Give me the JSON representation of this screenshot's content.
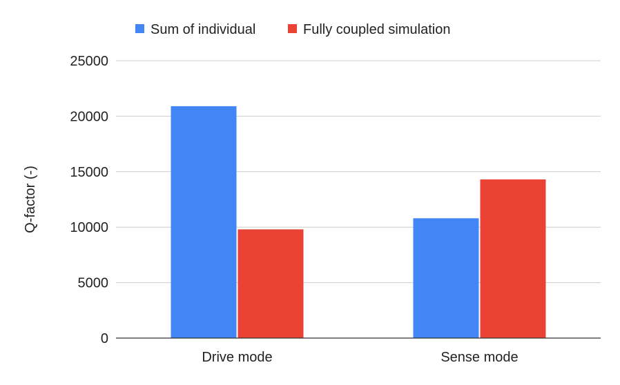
{
  "chart_data": {
    "type": "bar",
    "title": "",
    "xlabel": "",
    "ylabel": "Q-factor (-)",
    "categories": [
      "Drive mode",
      "Sense mode"
    ],
    "series": [
      {
        "name": "Sum of individual",
        "values": [
          20900,
          10800
        ],
        "color": "#4285f4"
      },
      {
        "name": "Fully coupled simulation",
        "values": [
          9800,
          14300
        ],
        "color": "#ea4335"
      }
    ],
    "ylim": [
      0,
      25000
    ],
    "yticks": [
      "0",
      "5000",
      "10000",
      "15000",
      "20000",
      "25000"
    ],
    "grid": true,
    "legend_position": "top"
  },
  "colors": {
    "gridline": "#cccccc",
    "axis": "#333333",
    "text": "#222222"
  }
}
